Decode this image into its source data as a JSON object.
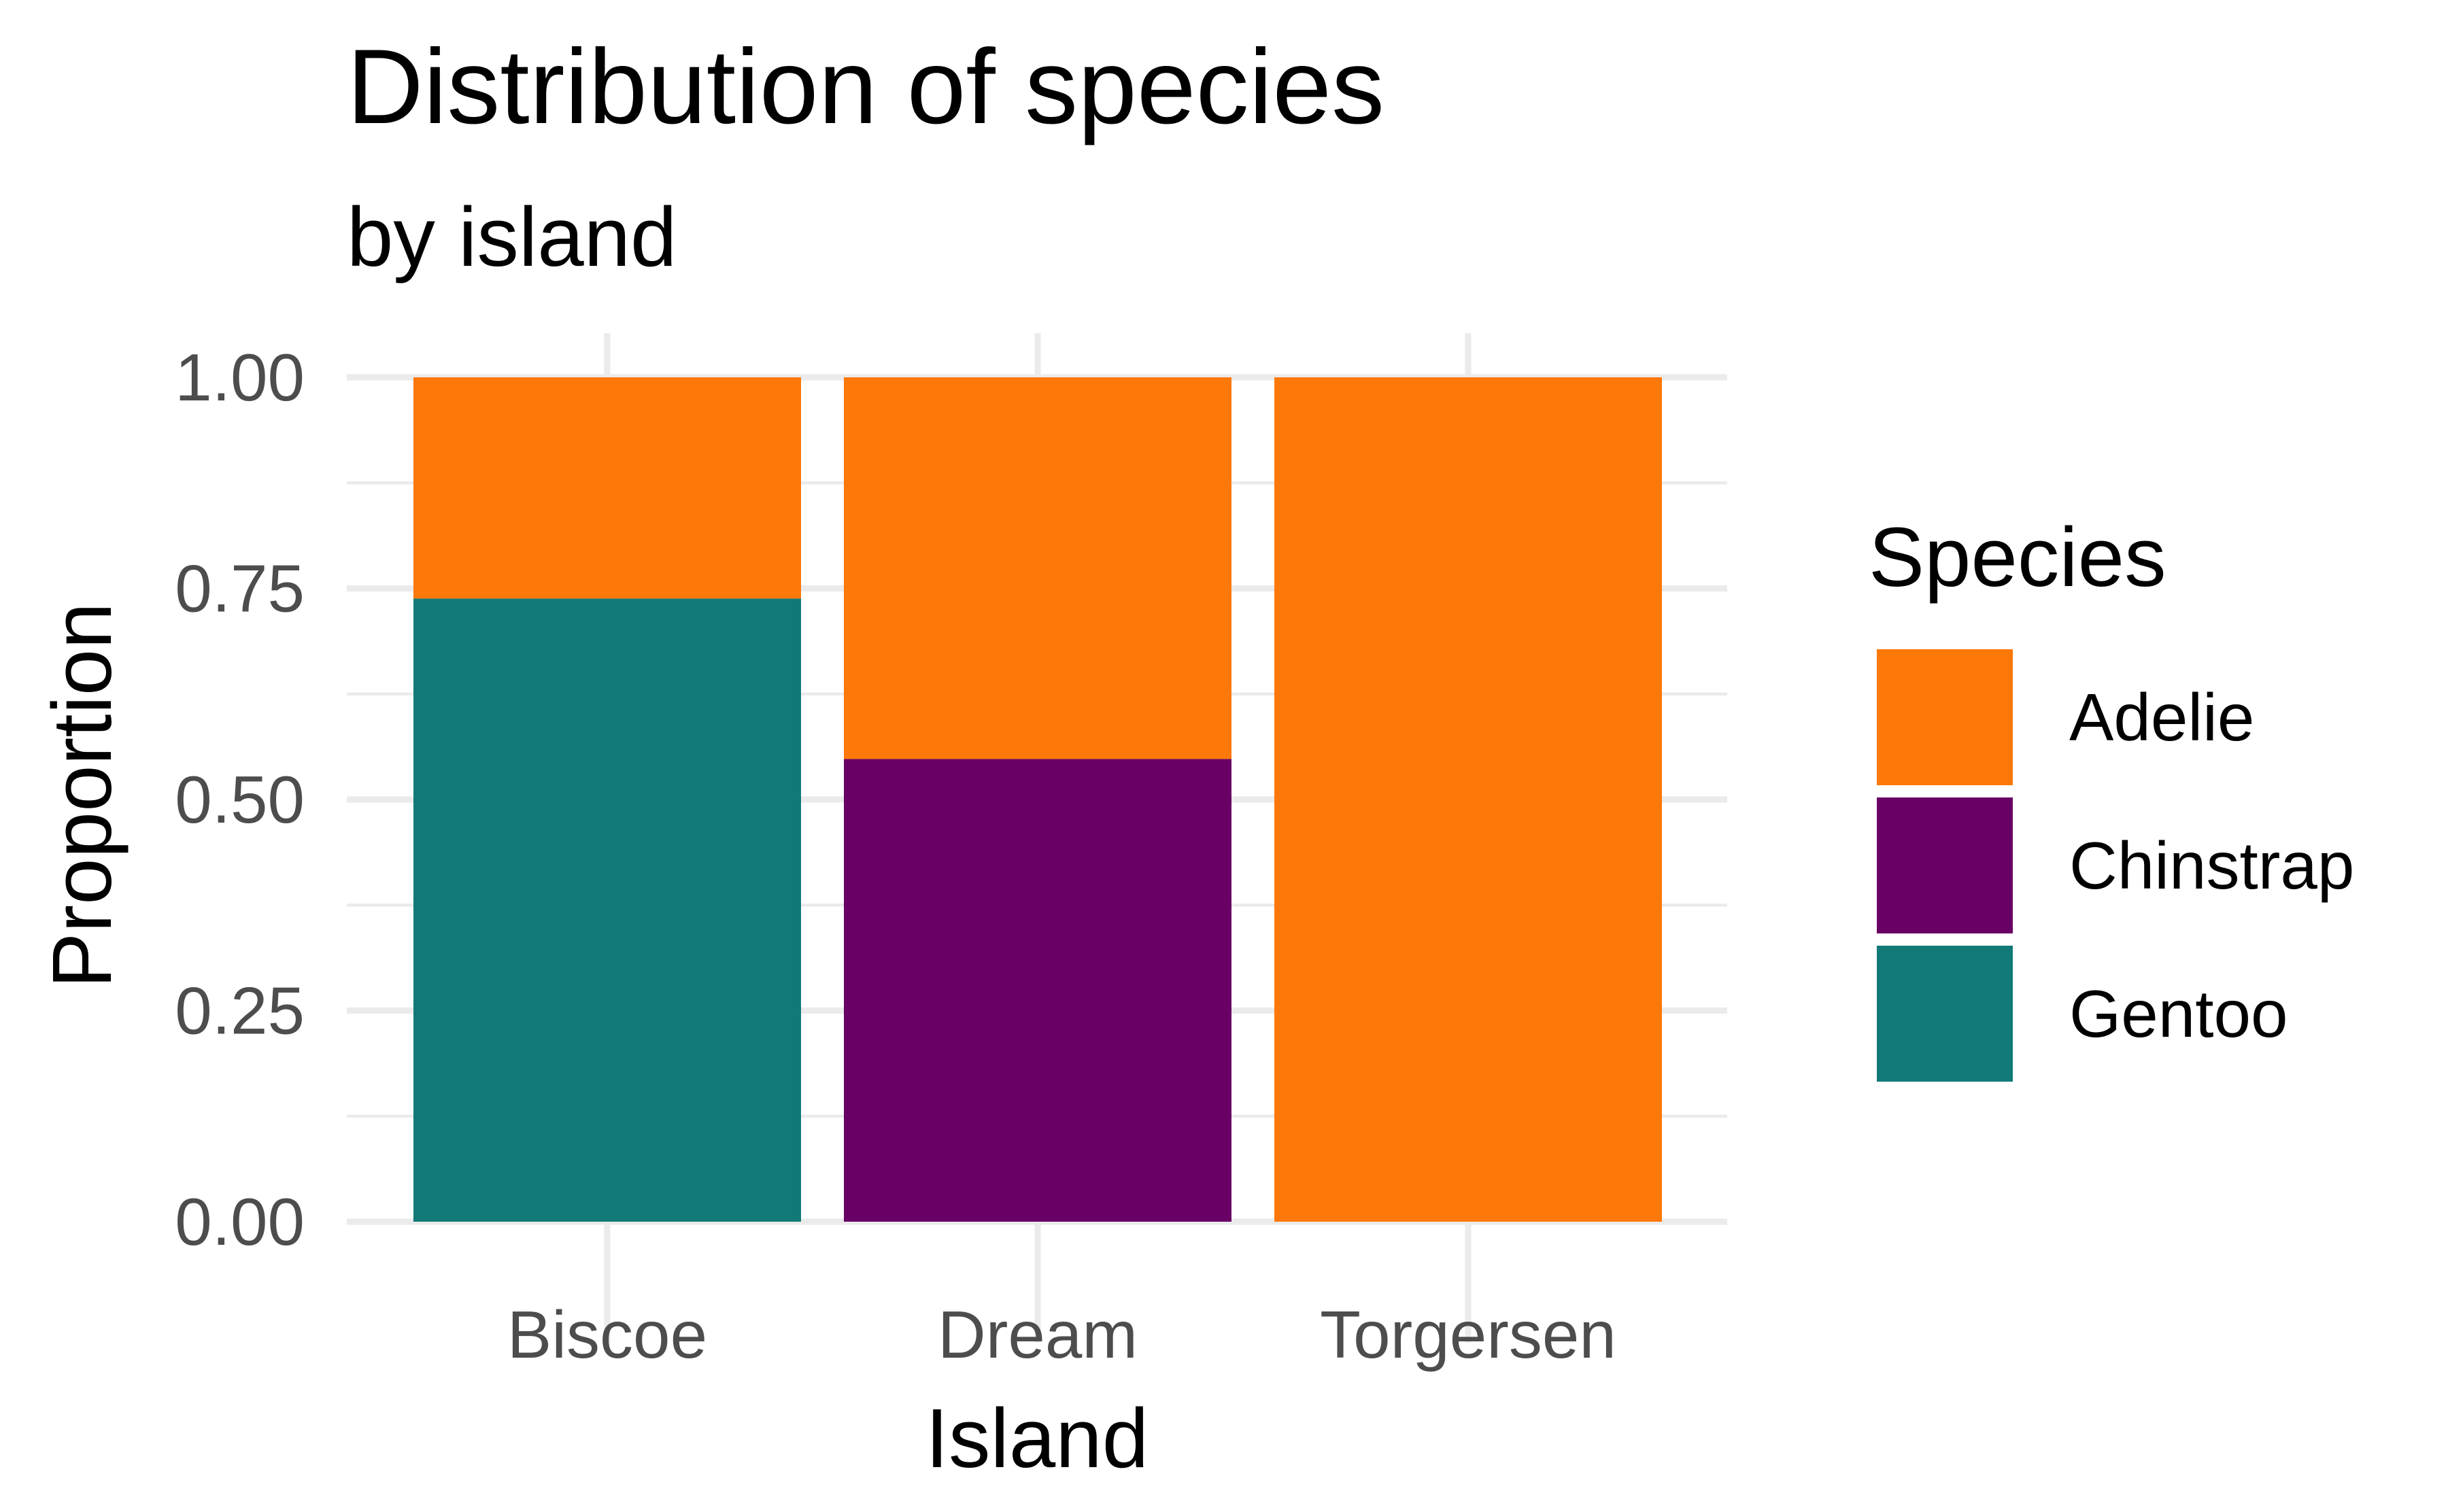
{
  "chart_data": {
    "type": "bar",
    "stacked": true,
    "title": "Distribution of species",
    "subtitle": "by island",
    "xlabel": "Island",
    "ylabel": "Proportion",
    "ylim": [
      0,
      1
    ],
    "yticks": [
      "0.00",
      "0.25",
      "0.50",
      "0.75",
      "1.00"
    ],
    "ytick_values": [
      0,
      0.25,
      0.5,
      0.75,
      1.0
    ],
    "grid": true,
    "legend_position": "right",
    "categories": [
      "Biscoe",
      "Dream",
      "Torgersen"
    ],
    "legend": {
      "title": "Species",
      "entries": [
        "Adelie",
        "Chinstrap",
        "Gentoo"
      ]
    },
    "series": [
      {
        "name": "Adelie",
        "color": "#fc7808",
        "values": [
          0.262,
          0.452,
          1.0
        ]
      },
      {
        "name": "Chinstrap",
        "color": "#690066",
        "values": [
          0.0,
          0.548,
          0.0
        ]
      },
      {
        "name": "Gentoo",
        "color": "#117a77",
        "values": [
          0.738,
          0.0,
          0.0
        ]
      }
    ]
  }
}
